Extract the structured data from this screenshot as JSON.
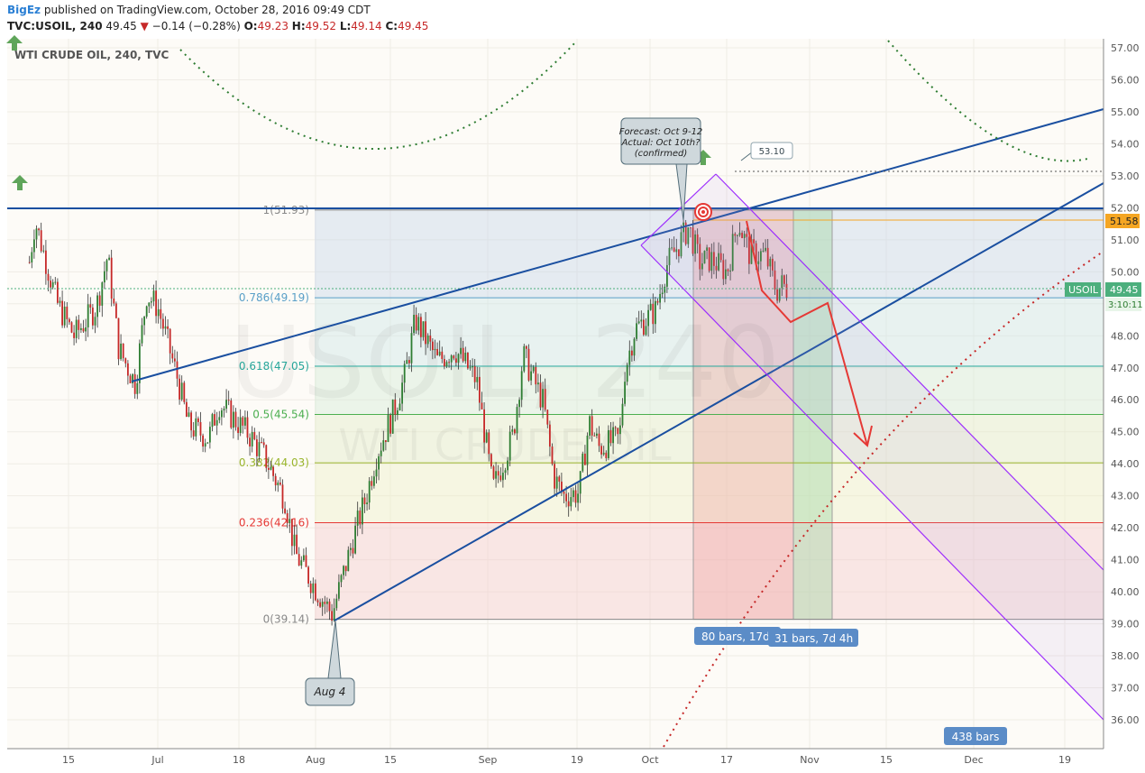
{
  "header": {
    "author": "BigEz",
    "published": "published on TradingView.com, October 28, 2016 09:49 CDT",
    "symbol": "TVC:USOIL, 240",
    "last": "49.45",
    "change_arrow": "▼",
    "change": "−0.14 (−0.28%)",
    "o_label": "O:",
    "o_value": "49.23",
    "h_label": "H:",
    "h_value": "49.52",
    "l_label": "L:",
    "l_value": "49.14",
    "c_label": "C:",
    "c_value": "49.45"
  },
  "chart_data": {
    "type": "candlestick",
    "title": "WTI CRUDE OIL, 240, TVC",
    "watermark_symbol": "USOIL, 240",
    "watermark_name": "WTI CRUDE OIL",
    "x_ticks": [
      "15",
      "Jul",
      "18",
      "Aug",
      "15",
      "Sep",
      "19",
      "Oct",
      "17",
      "Nov",
      "15",
      "Dec",
      "19"
    ],
    "y_ticks": [
      "57.00",
      "56.00",
      "55.00",
      "54.00",
      "53.00",
      "52.00",
      "51.00",
      "50.00",
      "49.00",
      "48.00",
      "47.00",
      "46.00",
      "45.00",
      "44.00",
      "43.00",
      "42.00",
      "41.00",
      "40.00",
      "39.00",
      "38.00",
      "37.00",
      "36.00"
    ],
    "ylim": [
      35.5,
      57.2
    ],
    "price_series": [
      {
        "x": "Jun 8",
        "y": 50.3
      },
      {
        "x": "Jun 9",
        "y": 51.6
      },
      {
        "x": "Jun 13",
        "y": 49.0
      },
      {
        "x": "Jun 16",
        "y": 48.0
      },
      {
        "x": "Jun 20",
        "y": 48.9
      },
      {
        "x": "Jun 22",
        "y": 50.5
      },
      {
        "x": "Jun 24",
        "y": 47.6
      },
      {
        "x": "Jun 27",
        "y": 46.5
      },
      {
        "x": "Jun 29",
        "y": 49.3
      },
      {
        "x": "Jul 1",
        "y": 48.9
      },
      {
        "x": "Jul 5",
        "y": 46.6
      },
      {
        "x": "Jul 7",
        "y": 45.2
      },
      {
        "x": "Jul 11",
        "y": 44.8
      },
      {
        "x": "Jul 13",
        "y": 45.9
      },
      {
        "x": "Jul 19",
        "y": 44.9
      },
      {
        "x": "Jul 22",
        "y": 44.2
      },
      {
        "x": "Jul 26",
        "y": 42.9
      },
      {
        "x": "Jul 28",
        "y": 41.2
      },
      {
        "x": "Aug 1",
        "y": 40.1
      },
      {
        "x": "Aug 4",
        "y": 39.3
      },
      {
        "x": "Aug 8",
        "y": 41.8
      },
      {
        "x": "Aug 10",
        "y": 42.9
      },
      {
        "x": "Aug 12",
        "y": 44.3
      },
      {
        "x": "Aug 15",
        "y": 45.6
      },
      {
        "x": "Aug 17",
        "y": 46.7
      },
      {
        "x": "Aug 19",
        "y": 48.5
      },
      {
        "x": "Aug 23",
        "y": 47.2
      },
      {
        "x": "Aug 26",
        "y": 47.6
      },
      {
        "x": "Aug 30",
        "y": 46.6
      },
      {
        "x": "Sep 1",
        "y": 44.3
      },
      {
        "x": "Sep 2",
        "y": 43.2
      },
      {
        "x": "Sep 6",
        "y": 44.9
      },
      {
        "x": "Sep 8",
        "y": 47.4
      },
      {
        "x": "Sep 12",
        "y": 45.9
      },
      {
        "x": "Sep 14",
        "y": 43.6
      },
      {
        "x": "Sep 16",
        "y": 43.0
      },
      {
        "x": "Sep 19",
        "y": 43.1
      },
      {
        "x": "Sep 21",
        "y": 45.3
      },
      {
        "x": "Sep 23",
        "y": 44.5
      },
      {
        "x": "Sep 27",
        "y": 44.8
      },
      {
        "x": "Sep 28",
        "y": 46.9
      },
      {
        "x": "Sep 30",
        "y": 48.2
      },
      {
        "x": "Oct 4",
        "y": 48.8
      },
      {
        "x": "Oct 6",
        "y": 50.2
      },
      {
        "x": "Oct 10",
        "y": 51.4
      },
      {
        "x": "Oct 12",
        "y": 50.3
      },
      {
        "x": "Oct 14",
        "y": 50.4
      },
      {
        "x": "Oct 17",
        "y": 50.0
      },
      {
        "x": "Oct 19",
        "y": 51.6
      },
      {
        "x": "Oct 21",
        "y": 50.6
      },
      {
        "x": "Oct 24",
        "y": 50.5
      },
      {
        "x": "Oct 26",
        "y": 49.4
      },
      {
        "x": "Oct 27",
        "y": 49.6
      },
      {
        "x": "Oct 28",
        "y": 49.45
      }
    ],
    "fib_retracement": [
      {
        "label": "1(51.93)",
        "value": 51.93,
        "color": "#888888"
      },
      {
        "label": "0.786(49.19)",
        "value": 49.19,
        "color": "#5aa0c8"
      },
      {
        "label": "0.618(47.05)",
        "value": 47.05,
        "color": "#26a69a"
      },
      {
        "label": "0.5(45.54)",
        "value": 45.54,
        "color": "#4caf50"
      },
      {
        "label": "0.382(44.03)",
        "value": 44.03,
        "color": "#9ab52d"
      },
      {
        "label": "0.236(42.16)",
        "value": 42.16,
        "color": "#e53935"
      },
      {
        "label": "0(39.14)",
        "value": 39.14,
        "color": "#888888"
      }
    ],
    "annotations": {
      "forecast_callout": [
        "Forecast: Oct 9-12",
        "Actual: Oct 10th?",
        "(confirmed)"
      ],
      "aug_callout": "Aug 4",
      "target_label": "53.10",
      "range_label_1": "80 bars, 17d",
      "range_label_2": "31 bars, 7d 4h",
      "bars_label": "438 bars"
    },
    "price_axis": {
      "last_price_tag": "51.58",
      "usoil_tag": "USOIL",
      "current_price": "49.45",
      "countdown": "3:10:11"
    }
  }
}
